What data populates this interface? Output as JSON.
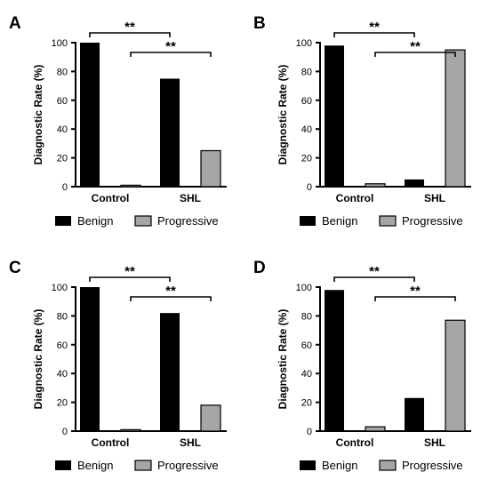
{
  "colors": {
    "benign": "#000000",
    "progressive": "#a6a6a6",
    "axis": "#000000",
    "background": "#ffffff"
  },
  "chart_data": [
    {
      "panel": "A",
      "type": "bar",
      "categories": [
        "Control",
        "SHL"
      ],
      "series": [
        {
          "name": "Benign",
          "values": [
            100,
            75
          ]
        },
        {
          "name": "Progressive",
          "values": [
            1,
            25
          ]
        }
      ],
      "ylabel": "Diagnostic Rate (%)",
      "ylim": [
        0,
        100
      ],
      "yticks": [
        0,
        20,
        40,
        60,
        80,
        100
      ],
      "significance": [
        {
          "label": "**",
          "from": "Control.Benign",
          "to": "SHL.Benign"
        },
        {
          "label": "**",
          "from": "Control.Progressive",
          "to": "SHL.Progressive"
        }
      ],
      "legend": "bottom",
      "grid": false
    },
    {
      "panel": "B",
      "type": "bar",
      "categories": [
        "Control",
        "SHL"
      ],
      "series": [
        {
          "name": "Benign",
          "values": [
            98,
            5
          ]
        },
        {
          "name": "Progressive",
          "values": [
            2,
            95
          ]
        }
      ],
      "ylabel": "Diagnostic Rate (%)",
      "ylim": [
        0,
        100
      ],
      "yticks": [
        0,
        20,
        40,
        60,
        80,
        100
      ],
      "significance": [
        {
          "label": "**",
          "from": "Control.Benign",
          "to": "SHL.Benign"
        },
        {
          "label": "**",
          "from": "Control.Progressive",
          "to": "SHL.Progressive"
        }
      ],
      "legend": "bottom",
      "grid": false
    },
    {
      "panel": "C",
      "type": "bar",
      "categories": [
        "Control",
        "SHL"
      ],
      "series": [
        {
          "name": "Benign",
          "values": [
            100,
            82
          ]
        },
        {
          "name": "Progressive",
          "values": [
            1,
            18
          ]
        }
      ],
      "ylabel": "Diagnostic Rate (%)",
      "ylim": [
        0,
        100
      ],
      "yticks": [
        0,
        20,
        40,
        60,
        80,
        100
      ],
      "significance": [
        {
          "label": "**",
          "from": "Control.Benign",
          "to": "SHL.Benign"
        },
        {
          "label": "**",
          "from": "Control.Progressive",
          "to": "SHL.Progressive"
        }
      ],
      "legend": "bottom",
      "grid": false
    },
    {
      "panel": "D",
      "type": "bar",
      "categories": [
        "Control",
        "SHL"
      ],
      "series": [
        {
          "name": "Benign",
          "values": [
            98,
            23
          ]
        },
        {
          "name": "Progressive",
          "values": [
            3,
            77
          ]
        }
      ],
      "ylabel": "Diagnostic Rate (%)",
      "ylim": [
        0,
        100
      ],
      "yticks": [
        0,
        20,
        40,
        60,
        80,
        100
      ],
      "significance": [
        {
          "label": "**",
          "from": "Control.Benign",
          "to": "SHL.Benign"
        },
        {
          "label": "**",
          "from": "Control.Progressive",
          "to": "SHL.Progressive"
        }
      ],
      "legend": "bottom",
      "grid": false
    }
  ]
}
